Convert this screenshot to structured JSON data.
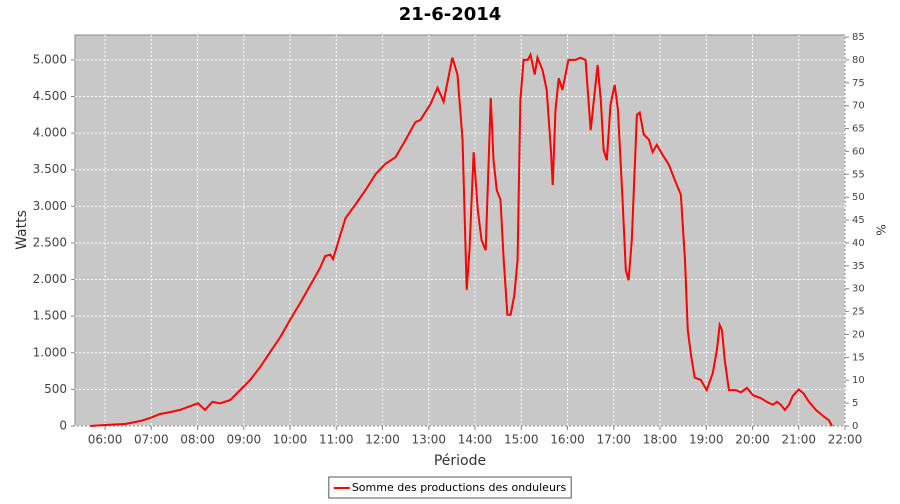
{
  "chart_data": {
    "type": "line",
    "title": "21-6-2014",
    "x_label": "Période",
    "y_label": "Watts",
    "y2_label": "%",
    "x": [
      5.68,
      6.0,
      6.43,
      6.76,
      6.97,
      7.19,
      7.41,
      7.62,
      7.84,
      8.01,
      8.16,
      8.32,
      8.49,
      8.71,
      8.92,
      9.14,
      9.36,
      9.57,
      9.79,
      10.0,
      10.22,
      10.44,
      10.65,
      10.76,
      10.87,
      10.93,
      11.02,
      11.2,
      11.41,
      11.63,
      11.85,
      12.06,
      12.28,
      12.5,
      12.71,
      12.82,
      13.04,
      13.19,
      13.32,
      13.51,
      13.62,
      13.73,
      13.82,
      13.88,
      13.97,
      14.06,
      14.14,
      14.23,
      14.34,
      14.4,
      14.47,
      14.55,
      14.62,
      14.7,
      14.77,
      14.85,
      14.92,
      14.98,
      15.05,
      15.14,
      15.2,
      15.29,
      15.35,
      15.46,
      15.55,
      15.64,
      15.68,
      15.74,
      15.81,
      15.89,
      16.02,
      16.17,
      16.28,
      16.39,
      16.5,
      16.57,
      16.65,
      16.72,
      16.78,
      16.85,
      16.93,
      17.02,
      17.09,
      17.19,
      17.26,
      17.32,
      17.39,
      17.5,
      17.56,
      17.65,
      17.76,
      17.84,
      17.93,
      18.06,
      18.19,
      18.32,
      18.45,
      18.54,
      18.6,
      18.67,
      18.75,
      18.88,
      19.01,
      19.14,
      19.23,
      19.29,
      19.34,
      19.4,
      19.49,
      19.64,
      19.75,
      19.88,
      20.01,
      20.18,
      20.31,
      20.44,
      20.53,
      20.61,
      20.7,
      20.79,
      20.87,
      21.0,
      21.11,
      21.22,
      21.37,
      21.52,
      21.65,
      21.72
    ],
    "series": [
      {
        "name": "Somme des productions des onduleurs",
        "color": "#ff0000",
        "values": [
          0,
          14,
          27,
          68,
          109,
          164,
          190,
          220,
          270,
          310,
          220,
          330,
          310,
          355,
          490,
          630,
          810,
          1010,
          1215,
          1450,
          1680,
          1925,
          2160,
          2320,
          2340,
          2280,
          2470,
          2840,
          3020,
          3220,
          3440,
          3580,
          3670,
          3910,
          4150,
          4180,
          4400,
          4620,
          4430,
          5030,
          4800,
          3910,
          1860,
          2400,
          3740,
          2950,
          2540,
          2400,
          4480,
          3630,
          3220,
          3090,
          2270,
          1520,
          1520,
          1790,
          2270,
          4450,
          5000,
          5000,
          5070,
          4800,
          5030,
          4860,
          4590,
          3770,
          3290,
          4320,
          4750,
          4590,
          5000,
          5000,
          5030,
          5000,
          4040,
          4450,
          4930,
          4450,
          3770,
          3630,
          4390,
          4660,
          4320,
          3090,
          2130,
          1990,
          2540,
          4250,
          4280,
          3980,
          3910,
          3740,
          3840,
          3700,
          3570,
          3360,
          3160,
          2270,
          1310,
          970,
          660,
          630,
          490,
          720,
          1040,
          1380,
          1310,
          900,
          490,
          490,
          460,
          520,
          420,
          380,
          330,
          290,
          330,
          290,
          220,
          290,
          410,
          500,
          440,
          330,
          220,
          140,
          80,
          0
        ]
      }
    ],
    "xlim": [
      5.35,
      22.0
    ],
    "xticks": [
      {
        "value": 6,
        "label": "06:00"
      },
      {
        "value": 7,
        "label": "07:00"
      },
      {
        "value": 8,
        "label": "08:00"
      },
      {
        "value": 9,
        "label": "09:00"
      },
      {
        "value": 10,
        "label": "10:00"
      },
      {
        "value": 11,
        "label": "11:00"
      },
      {
        "value": 12,
        "label": "12:00"
      },
      {
        "value": 13,
        "label": "13:00"
      },
      {
        "value": 14,
        "label": "14:00"
      },
      {
        "value": 15,
        "label": "15:00"
      },
      {
        "value": 16,
        "label": "16:00"
      },
      {
        "value": 17,
        "label": "17:00"
      },
      {
        "value": 18,
        "label": "18:00"
      },
      {
        "value": 19,
        "label": "19:00"
      },
      {
        "value": 20,
        "label": "20:00"
      },
      {
        "value": 21,
        "label": "21:00"
      },
      {
        "value": 22,
        "label": "22:00"
      }
    ],
    "ylim": [
      0,
      5340
    ],
    "yticks": [
      0,
      500,
      {
        "value": 1000,
        "label": "1.000"
      },
      {
        "value": 1500,
        "label": "1.500"
      },
      {
        "value": 2000,
        "label": "2.000"
      },
      {
        "value": 2500,
        "label": "2.500"
      },
      {
        "value": 3000,
        "label": "3.000"
      },
      {
        "value": 3500,
        "label": "3.500"
      },
      {
        "value": 4000,
        "label": "4.000"
      },
      {
        "value": 4500,
        "label": "4.500"
      },
      {
        "value": 5000,
        "label": "5.000"
      }
    ],
    "y2lim": [
      0,
      85.44
    ],
    "y2ticks": [
      0,
      5,
      10,
      15,
      20,
      25,
      30,
      35,
      40,
      45,
      50,
      55,
      60,
      65,
      70,
      75,
      80,
      85
    ],
    "grid": true,
    "legend": "bottom"
  }
}
